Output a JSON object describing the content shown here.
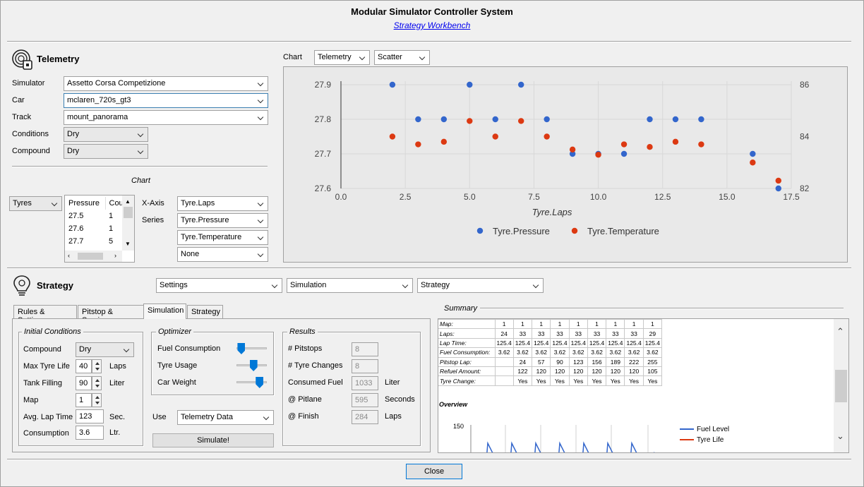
{
  "window": {
    "title": "Modular Simulator Controller System",
    "subtitle": "Strategy Workbench"
  },
  "telemetry": {
    "title": "Telemetry",
    "icon": "telemetry-gauge-icon",
    "fields": {
      "simulator_label": "Simulator",
      "simulator_value": "Assetto Corsa Competizione",
      "car_label": "Car",
      "car_value": "mclaren_720s_gt3",
      "track_label": "Track",
      "track_value": "mount_panorama",
      "conditions_label": "Conditions",
      "conditions_value": "Dry",
      "compound_label": "Compound",
      "compound_value": "Dry"
    },
    "chart_section_label": "Chart",
    "data_type_value": "Tyres",
    "list": {
      "headers": [
        "Pressure",
        "Count"
      ],
      "rows": [
        [
          "27.5",
          "1"
        ],
        [
          "27.6",
          "1"
        ],
        [
          "27.7",
          "5"
        ]
      ]
    },
    "xaxis_label": "X-Axis",
    "xaxis_value": "Tyre.Laps",
    "series_label": "Series",
    "series_values": [
      "Tyre.Pressure",
      "Tyre.Temperature",
      "None"
    ]
  },
  "chart_panel": {
    "label": "Chart",
    "source_value": "Telemetry",
    "type_value": "Scatter"
  },
  "chart_data": {
    "type": "scatter",
    "xlabel": "Tyre.Laps",
    "x_ticks": [
      "0.0",
      "2.5",
      "5.0",
      "7.5",
      "10.0",
      "12.5",
      "15.0",
      "17.5"
    ],
    "xlim": [
      0,
      17.5
    ],
    "y_left_ticks": [
      "27.6",
      "27.7",
      "27.8",
      "27.9"
    ],
    "ylim_left": [
      27.6,
      27.9
    ],
    "y_right_ticks": [
      "82",
      "84",
      "86"
    ],
    "ylim_right": [
      82,
      86
    ],
    "legend_position": "bottom",
    "series": [
      {
        "name": "Tyre.Pressure",
        "axis": "left",
        "color": "#3366cc",
        "points": [
          [
            2,
            27.9
          ],
          [
            3,
            27.8
          ],
          [
            4,
            27.8
          ],
          [
            5,
            27.9
          ],
          [
            6,
            27.8
          ],
          [
            7,
            27.9
          ],
          [
            8,
            27.8
          ],
          [
            9,
            27.7
          ],
          [
            10,
            27.7
          ],
          [
            11,
            27.7
          ],
          [
            12,
            27.8
          ],
          [
            13,
            27.8
          ],
          [
            14,
            27.8
          ],
          [
            16,
            27.7
          ],
          [
            17,
            27.6
          ]
        ]
      },
      {
        "name": "Tyre.Temperature",
        "axis": "right",
        "color": "#dc3912",
        "points": [
          [
            2,
            84.0
          ],
          [
            3,
            83.7
          ],
          [
            4,
            83.8
          ],
          [
            5,
            84.6
          ],
          [
            6,
            84.0
          ],
          [
            7,
            84.6
          ],
          [
            8,
            84.0
          ],
          [
            9,
            83.5
          ],
          [
            10,
            83.3
          ],
          [
            11,
            83.7
          ],
          [
            12,
            83.6
          ],
          [
            13,
            83.8
          ],
          [
            14,
            83.7
          ],
          [
            16,
            83.0
          ],
          [
            17,
            82.3
          ]
        ]
      }
    ]
  },
  "strategy": {
    "title": "Strategy",
    "icon": "strategy-bulb-icon",
    "menus": [
      "Settings",
      "Simulation",
      "Strategy"
    ],
    "tabs": [
      "Rules & Settings",
      "Pitstop & Service",
      "Simulation",
      "Strategy"
    ],
    "active_tab": 2,
    "initial_conditions": {
      "title": "Initial Conditions",
      "compound_label": "Compound",
      "compound_value": "Dry",
      "max_tyre_life_label": "Max Tyre Life",
      "max_tyre_life_value": "40",
      "max_tyre_life_unit": "Laps",
      "tank_filling_label": "Tank Filling",
      "tank_filling_value": "90",
      "tank_filling_unit": "Liter",
      "map_label": "Map",
      "map_value": "1",
      "avg_lap_time_label": "Avg. Lap Time",
      "avg_lap_time_value": "123",
      "avg_lap_time_unit": "Sec.",
      "consumption_label": "Consumption",
      "consumption_value": "3.6",
      "consumption_unit": "Ltr."
    },
    "optimizer": {
      "title": "Optimizer",
      "sliders": [
        {
          "label": "Fuel Consumption",
          "value": 0.15
        },
        {
          "label": "Tyre Usage",
          "value": 0.55
        },
        {
          "label": "Car Weight",
          "value": 0.75
        }
      ],
      "use_label": "Use",
      "use_value": "Telemetry Data",
      "simulate_label": "Simulate!"
    },
    "results": {
      "title": "Results",
      "pitstops_label": "# Pitstops",
      "pitstops_value": "8",
      "tyre_changes_label": "# Tyre Changes",
      "tyre_changes_value": "8",
      "consumed_fuel_label": "Consumed Fuel",
      "consumed_fuel_value": "1033",
      "consumed_fuel_unit": "Liter",
      "pitlane_label": "@ Pitlane",
      "pitlane_value": "595",
      "pitlane_unit": "Seconds",
      "finish_label": "@ Finish",
      "finish_value": "284",
      "finish_unit": "Laps"
    },
    "summary": {
      "title": "Summary",
      "rows": [
        {
          "label": "Map:",
          "values": [
            "1",
            "1",
            "1",
            "1",
            "1",
            "1",
            "1",
            "1",
            "1"
          ]
        },
        {
          "label": "Laps:",
          "values": [
            "24",
            "33",
            "33",
            "33",
            "33",
            "33",
            "33",
            "33",
            "29"
          ]
        },
        {
          "label": "Lap Time:",
          "values": [
            "125.4",
            "125.4",
            "125.4",
            "125.4",
            "125.4",
            "125.4",
            "125.4",
            "125.4",
            "125.4"
          ]
        },
        {
          "label": "Fuel Consumption:",
          "values": [
            "3.62",
            "3.62",
            "3.62",
            "3.62",
            "3.62",
            "3.62",
            "3.62",
            "3.62",
            "3.62"
          ]
        },
        {
          "label": "Pitstop Lap:",
          "values": [
            "",
            "24",
            "57",
            "90",
            "123",
            "156",
            "189",
            "222",
            "255"
          ]
        },
        {
          "label": "Refuel Amount:",
          "values": [
            "",
            "122",
            "120",
            "120",
            "120",
            "120",
            "120",
            "120",
            "105"
          ]
        },
        {
          "label": "Tyre Change:",
          "values": [
            "",
            "Yes",
            "Yes",
            "Yes",
            "Yes",
            "Yes",
            "Yes",
            "Yes",
            "Yes"
          ]
        }
      ],
      "overview_label": "Overview",
      "overview_y_tick": "150",
      "legend": [
        {
          "name": "Fuel Level",
          "color": "#3366cc"
        },
        {
          "name": "Tyre Life",
          "color": "#dc3912"
        }
      ]
    }
  },
  "footer": {
    "close_label": "Close"
  }
}
